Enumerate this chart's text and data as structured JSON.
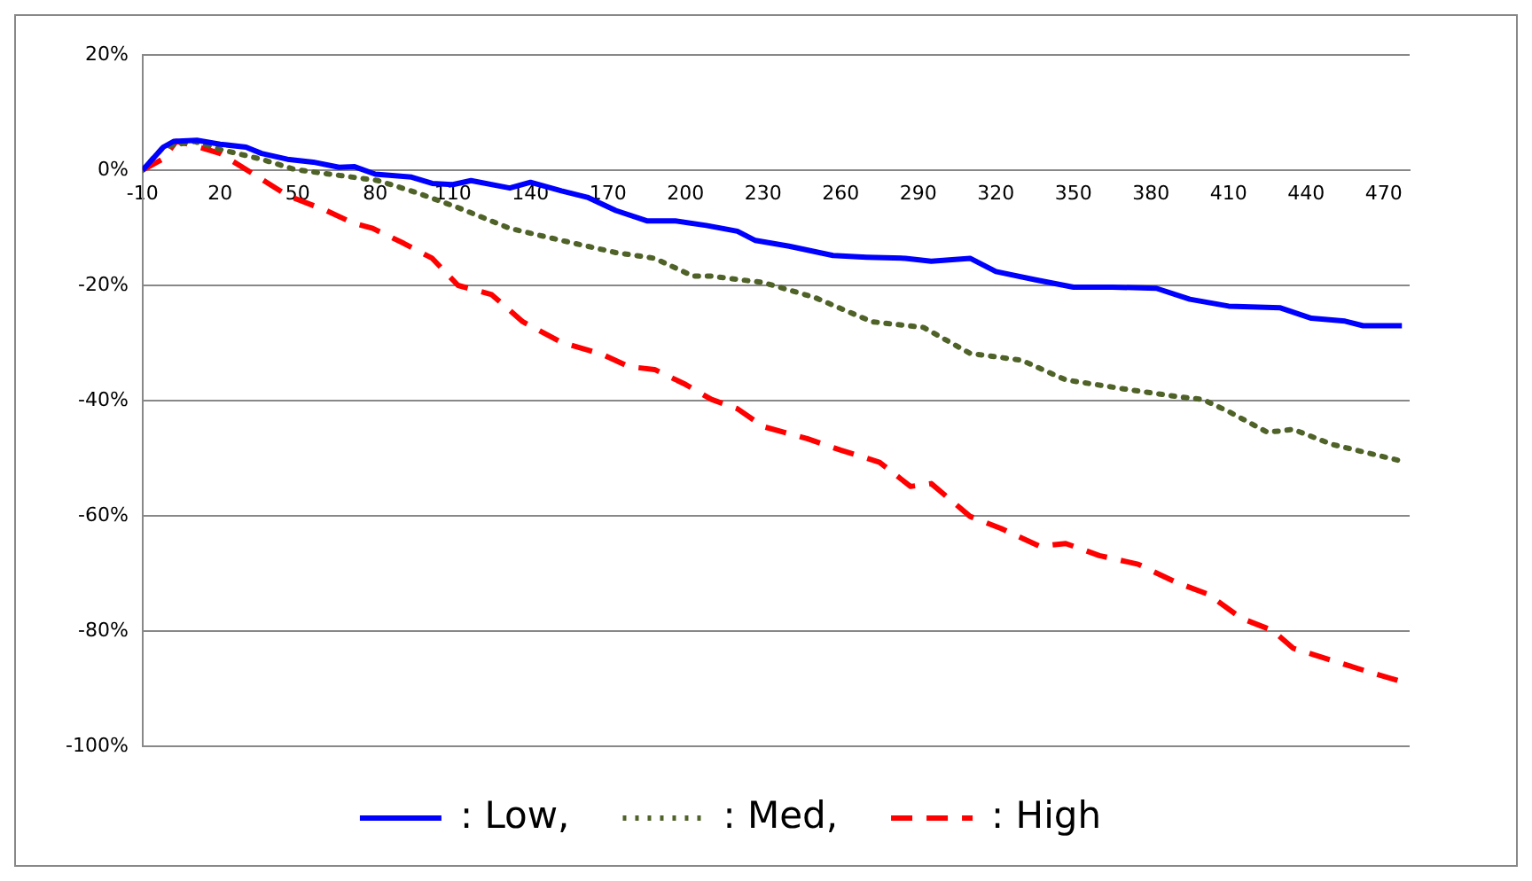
{
  "chart_data": {
    "type": "line",
    "xlim": [
      -10,
      480
    ],
    "xticks": [
      -10,
      20,
      50,
      80,
      110,
      140,
      170,
      200,
      230,
      260,
      290,
      320,
      350,
      380,
      410,
      440,
      470
    ],
    "ylim": [
      -100,
      20
    ],
    "yticks": [
      {
        "value": -100,
        "label": "-100%"
      },
      {
        "value": -80,
        "label": "-80%"
      },
      {
        "value": -60,
        "label": "-60%"
      },
      {
        "value": -40,
        "label": "-40%"
      },
      {
        "value": -20,
        "label": "-20%"
      },
      {
        "value": 0,
        "label": "0%"
      },
      {
        "value": 20,
        "label": "20%"
      }
    ],
    "grid": "y",
    "legend": "bottom",
    "marker": "none",
    "series": [
      {
        "name": ": Low,",
        "color": "#0000ff",
        "line_style": "solid",
        "x": [
          -10,
          -2,
          2,
          11,
          20,
          30,
          36,
          46,
          56,
          66,
          72,
          80,
          94,
          102,
          110,
          117,
          132,
          140,
          152,
          162,
          173,
          185,
          196,
          208,
          220,
          227,
          240,
          257,
          270,
          285,
          295,
          310,
          320,
          335,
          350,
          365,
          382,
          395,
          410,
          430,
          442,
          455,
          462,
          477
        ],
        "values": [
          0,
          4,
          5,
          5.2,
          4.5,
          4,
          2.9,
          1.9,
          1.4,
          0.5,
          0.6,
          -0.7,
          -1.2,
          -2.3,
          -2.5,
          -1.8,
          -3.1,
          -2.1,
          -3.6,
          -4.7,
          -7,
          -8.8,
          -8.8,
          -9.6,
          -10.6,
          -12.2,
          -13.2,
          -14.8,
          -15.1,
          -15.3,
          -15.8,
          -15.3,
          -17.6,
          -19,
          -20.3,
          -20.3,
          -20.5,
          -22.4,
          -23.6,
          -23.9,
          -25.7,
          -26.2,
          -27,
          -27
        ]
      },
      {
        "name": ": Med,",
        "color": "#4f6228",
        "line_style": "dotted",
        "x": [
          -10,
          -2,
          10,
          20,
          36,
          49,
          66,
          81,
          96,
          112,
          132,
          152,
          173,
          188,
          203,
          210,
          230,
          250,
          272,
          292,
          310,
          330,
          347,
          370,
          390,
          400,
          410,
          425,
          435,
          450,
          477
        ],
        "values": [
          0,
          4,
          5,
          3.6,
          1.9,
          0.1,
          -0.9,
          -1.8,
          -3.9,
          -6.5,
          -10.1,
          -12.2,
          -14.3,
          -15.3,
          -18.4,
          -18.4,
          -19.5,
          -22.1,
          -26.3,
          -27.3,
          -31.8,
          -33,
          -36.4,
          -38,
          -39.3,
          -39.8,
          -41.9,
          -45.5,
          -45,
          -47.6,
          -50.5
        ]
      },
      {
        "name": ": High",
        "color": "#ff0000",
        "line_style": "dashed",
        "x": [
          -10,
          -2,
          3,
          8,
          20,
          33,
          46,
          61,
          71,
          79,
          91,
          102,
          112,
          125,
          137,
          152,
          168,
          178,
          188,
          200,
          210,
          220,
          230,
          247,
          260,
          275,
          287,
          295,
          310,
          322,
          337,
          347,
          360,
          375,
          390,
          402,
          415,
          427,
          435,
          450,
          465,
          477
        ],
        "values": [
          0,
          2,
          5,
          4.5,
          2.9,
          -0.7,
          -4.4,
          -7,
          -9.1,
          -10.1,
          -12.7,
          -15.3,
          -20,
          -21.6,
          -26.3,
          -29.9,
          -32,
          -34.1,
          -34.6,
          -37.2,
          -39.8,
          -41.4,
          -44.5,
          -46.6,
          -48.6,
          -50.7,
          -54.9,
          -54.4,
          -60.1,
          -62.2,
          -65.3,
          -64.8,
          -66.9,
          -68.4,
          -71.6,
          -73.6,
          -77.8,
          -79.9,
          -83,
          -85.1,
          -87.2,
          -88.8
        ]
      }
    ]
  }
}
